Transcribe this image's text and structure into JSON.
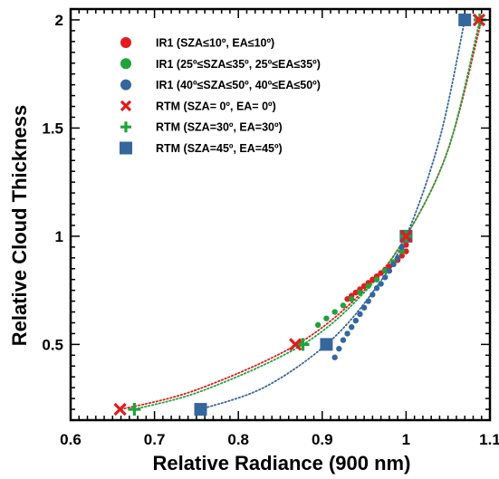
{
  "chart_data": {
    "type": "scatter",
    "title": "",
    "xlabel": "Relative Radiance (900 nm)",
    "ylabel": "Relative Cloud Thickness",
    "xlim": [
      0.6,
      1.1
    ],
    "ylim": [
      0.15,
      2.05
    ],
    "xticks": [
      0.6,
      0.7,
      0.8,
      0.9,
      1.0,
      1.1
    ],
    "xtick_labels": [
      "0.6",
      "0.7",
      "0.8",
      "0.9",
      "1",
      "1.1"
    ],
    "yticks": [
      0.5,
      1.0,
      1.5,
      2.0
    ],
    "ytick_labels": [
      "0.5",
      "1",
      "1.5",
      "2"
    ],
    "legend_position": "top-left",
    "series": [
      {
        "name": "IR1 (SZA≤10º, EA≤10º)",
        "marker": "circle",
        "color": "#e41a1c",
        "x": [
          0.93,
          0.935,
          0.94,
          0.945,
          0.95,
          0.955,
          0.96,
          0.965,
          0.97,
          0.975,
          0.98,
          0.985,
          0.99,
          0.995,
          1.0,
          1.0
        ],
        "y": [
          0.71,
          0.725,
          0.74,
          0.755,
          0.77,
          0.785,
          0.8,
          0.815,
          0.83,
          0.845,
          0.86,
          0.875,
          0.89,
          0.91,
          0.93,
          0.96
        ]
      },
      {
        "name": "IR1 (25º≤SZA≤35º, 25º≤EA≤35º)",
        "marker": "circle",
        "color": "#1ea33a",
        "x": [
          0.895,
          0.905,
          0.915,
          0.925,
          0.935,
          0.945,
          0.955,
          0.965,
          0.975,
          0.985,
          0.995
        ],
        "y": [
          0.59,
          0.62,
          0.65,
          0.68,
          0.71,
          0.74,
          0.77,
          0.8,
          0.84,
          0.88,
          0.93
        ]
      },
      {
        "name": "IR1 (40º≤SZA≤50º, 40º≤EA≤50º)",
        "marker": "circle",
        "color": "#35679d",
        "x": [
          0.915,
          0.92,
          0.925,
          0.93,
          0.935,
          0.94,
          0.945,
          0.95,
          0.955,
          0.96,
          0.965,
          0.97,
          0.975,
          0.98,
          0.985,
          0.99,
          0.995
        ],
        "y": [
          0.44,
          0.48,
          0.52,
          0.55,
          0.58,
          0.61,
          0.64,
          0.67,
          0.7,
          0.73,
          0.76,
          0.78,
          0.81,
          0.84,
          0.87,
          0.9,
          0.95
        ]
      },
      {
        "name": "RTM (SZA=  0º, EA=  0º)",
        "marker": "x",
        "color": "#e41a1c",
        "x": [
          0.659,
          0.868,
          1.0,
          1.087
        ],
        "y": [
          0.2,
          0.5,
          1.0,
          2.0
        ]
      },
      {
        "name": "RTM (SZA=30º, EA=30º)",
        "marker": "plus",
        "color": "#1ea33a",
        "x": [
          0.676,
          0.877,
          1.0,
          1.088
        ],
        "y": [
          0.2,
          0.5,
          1.0,
          2.0
        ]
      },
      {
        "name": "RTM (SZA=45º, EA=45º)",
        "marker": "square",
        "color": "#35679d",
        "x": [
          0.755,
          0.905,
          1.0,
          1.07
        ],
        "y": [
          0.2,
          0.5,
          1.0,
          2.0
        ]
      }
    ],
    "fit_curves": [
      {
        "color": "#e41a1c",
        "style": "dotted",
        "x": [
          0.66,
          0.75,
          0.87,
          0.95,
          1.0,
          1.05,
          1.09
        ],
        "y": [
          0.2,
          0.29,
          0.5,
          0.75,
          1.0,
          1.4,
          2.0
        ]
      },
      {
        "color": "#1ea33a",
        "style": "dotted",
        "x": [
          0.676,
          0.76,
          0.877,
          0.95,
          1.0,
          1.05,
          1.088
        ],
        "y": [
          0.2,
          0.29,
          0.5,
          0.74,
          1.0,
          1.4,
          2.0
        ]
      },
      {
        "color": "#35679d",
        "style": "dotted",
        "x": [
          0.755,
          0.83,
          0.905,
          0.96,
          1.0,
          1.04,
          1.07
        ],
        "y": [
          0.2,
          0.3,
          0.5,
          0.74,
          1.0,
          1.45,
          2.0
        ]
      }
    ]
  }
}
